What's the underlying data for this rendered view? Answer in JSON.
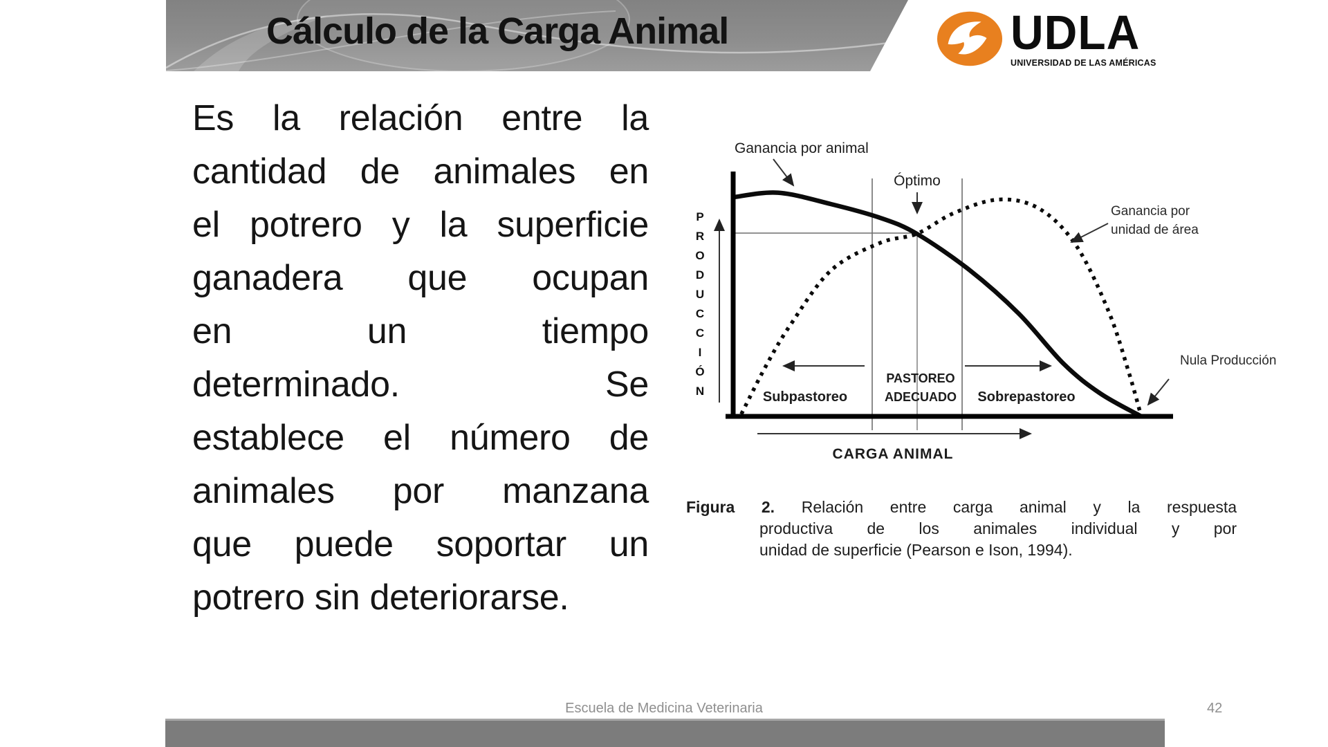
{
  "header": {
    "title": "Cálculo de la Carga Animal"
  },
  "logo": {
    "wordmark": "UDLA",
    "subtitle": "UNIVERSIDAD DE LAS AMÉRICAS",
    "orange": "#e8801f"
  },
  "body_text": {
    "lines": [
      "Es la relación entre la",
      "cantidad de animales en",
      "el potrero y la superficie",
      "ganadera que ocupan",
      "en un tiempo",
      "determinado. Se",
      "establece el número de",
      "animales por manzana",
      "que puede soportar un",
      "potrero sin deteriorarse."
    ]
  },
  "figure": {
    "labels": {
      "ganancia_animal": "Ganancia por animal",
      "optimo": "Óptimo",
      "ganancia_area": "Ganancia por unidad de área",
      "nula_produccion": "Nula Producción",
      "pastoreo_line1": "PASTOREO",
      "pastoreo_line2": "ADECUADO",
      "subpastoreo": "Subpastoreo",
      "sobrepastoreo": "Sobrepastoreo",
      "xlabel": "CARGA ANIMAL",
      "ylabel": "PRODUCCIÓN"
    },
    "caption": {
      "label": "Figura 2.",
      "line1": "Relación entre carga animal y la respuesta",
      "line2": "productiva de los animales individual y por",
      "line3": "unidad de superficie (Pearson e Ison, 1994)."
    }
  },
  "chart_data": {
    "type": "line",
    "title": "",
    "xlabel": "CARGA ANIMAL",
    "ylabel": "PRODUCCIÓN",
    "x_units": "relative (0-100, conceptual, no numeric ticks shown)",
    "y_units": "relative (0-100, conceptual, no numeric ticks shown)",
    "xlim": [
      0,
      100
    ],
    "ylim": [
      0,
      100
    ],
    "grid": false,
    "legend_position": "inline annotations with arrows",
    "series": [
      {
        "name": "Ganancia por animal",
        "style": "solid",
        "x": [
          0,
          11,
          24,
          36,
          45,
          58,
          70,
          81,
          90,
          100
        ],
        "y": [
          96,
          98,
          93,
          87,
          80,
          64,
          45,
          23,
          10,
          0
        ]
      },
      {
        "name": "Ganancia por unidad de área",
        "style": "dotted",
        "x": [
          2,
          8,
          14,
          24,
          36,
          45,
          54,
          65,
          75,
          84,
          92,
          97,
          100
        ],
        "y": [
          1,
          22,
          40,
          64,
          76,
          80,
          89,
          95,
          91,
          75,
          46,
          19,
          0
        ]
      }
    ],
    "zones": [
      {
        "label": "Subpastoreo",
        "x_range": [
          0,
          34
        ]
      },
      {
        "label": "PASTOREO ADECUADO",
        "x_range": [
          34,
          56
        ]
      },
      {
        "label": "Sobrepastoreo",
        "x_range": [
          56,
          100
        ]
      }
    ],
    "annotations": [
      {
        "label": "Óptimo",
        "x": 45,
        "y": 80,
        "note": "intersection of both curves"
      },
      {
        "label": "Nula Producción",
        "x": 100,
        "y": 0,
        "note": "both curves reach zero"
      }
    ],
    "source": "Pearson e Ison, 1994"
  },
  "footer": {
    "school": "Escuela de Medicina Veterinaria",
    "page": "42"
  },
  "colors": {
    "accent_orange": "#e8801f",
    "header_gray": "#8d8d8d",
    "bottom_bar_gray": "#7c7c7c",
    "text_black": "#151515",
    "footer_gray": "#8f8f8f"
  }
}
